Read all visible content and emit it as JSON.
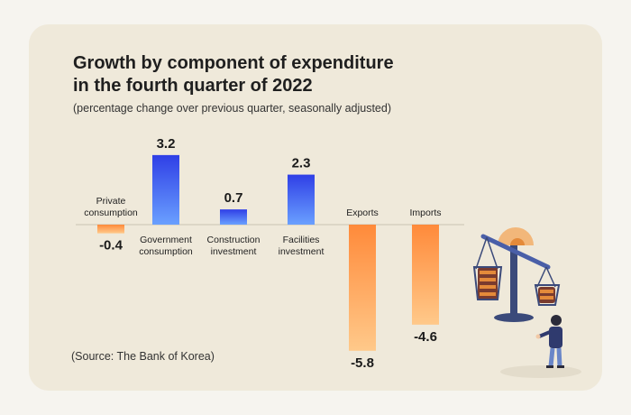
{
  "colors": {
    "positive_top": "#2f3fe6",
    "positive_bottom": "#6aa0ff",
    "negative_top": "#ff8a3a",
    "negative_bottom": "#ffc98a",
    "background": "#efe9da"
  },
  "source": "(Source: The Bank of Korea)",
  "chart_data": {
    "type": "bar",
    "title": "Growth by component of expenditure in the fourth quarter of 2022",
    "title_lines": [
      "Growth by component of expenditure",
      "in the fourth quarter of 2022"
    ],
    "subtitle": "(percentage change over previous quarter, seasonally adjusted)",
    "xlabel": "",
    "ylabel": "",
    "ylim": [
      -6,
      3.5
    ],
    "grid": false,
    "categories": [
      [
        "Private",
        "consumption"
      ],
      [
        "Government",
        "consumption"
      ],
      [
        "Construction",
        "investment"
      ],
      [
        "Facilities",
        "investment"
      ],
      [
        "Exports"
      ],
      [
        "Imports"
      ]
    ],
    "values": [
      -0.4,
      3.2,
      0.7,
      2.3,
      -5.8,
      -4.6
    ],
    "value_labels": [
      "-0.4",
      "3.2",
      "0.7",
      "2.3",
      "-5.8",
      "-4.6"
    ]
  }
}
